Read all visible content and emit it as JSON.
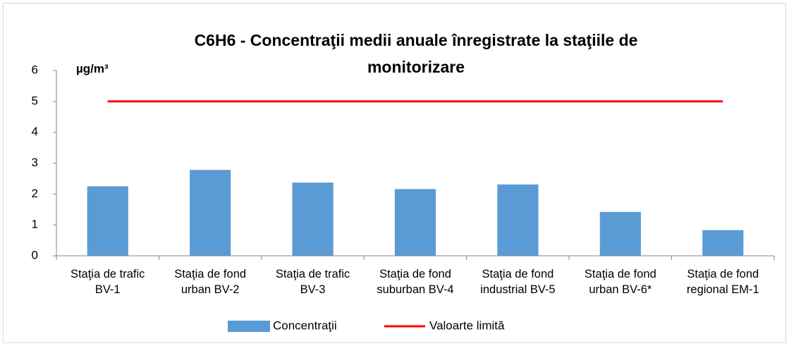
{
  "chart_data": {
    "type": "bar",
    "title": "C6H6 - Concentraţii medii anuale înregistrate la staţiile de\nmonitorizare",
    "y_unit": "µg/m³",
    "categories": [
      "Staţia de trafic\nBV-1",
      "Staţia de fond\nurban BV-2",
      "Staţia de trafic\nBV-3",
      "Staţia de fond\nsuburban BV-4",
      "Staţia de fond\nindustrial BV-5",
      "Staţia de fond\nurban BV-6*",
      "Staţia de fond\nregional EM-1"
    ],
    "series": [
      {
        "name": "Concentraţii",
        "type": "bar",
        "color": "#5b9bd5",
        "values": [
          2.25,
          2.78,
          2.37,
          2.16,
          2.31,
          1.42,
          0.83
        ]
      },
      {
        "name": "Valoarte limită",
        "type": "line",
        "color": "#ff0000",
        "values": [
          5,
          5,
          5,
          5,
          5,
          5,
          5
        ]
      }
    ],
    "ylim": [
      0,
      6
    ],
    "yticks": [
      0,
      1,
      2,
      3,
      4,
      5,
      6
    ],
    "grid": false,
    "legend": "bottom"
  }
}
